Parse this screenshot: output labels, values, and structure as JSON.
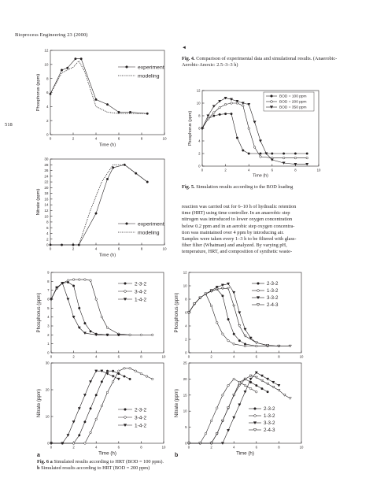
{
  "page": {
    "running_head": "Bioprocess Engineering 23 (2000)",
    "page_number": "518",
    "arrow_glyph": "◄"
  },
  "captions": {
    "fig4_label": "Fig. 4.",
    "fig4_text": " Comparison of experimental data and simulational results. (Anaerobic-Aerobic-Anoxic: 2.5–3–3 h)",
    "fig5_label": "Fig. 5.",
    "fig5_text": " Simulation results according to the BOD loading",
    "fig6_label": "Fig. 6",
    "fig6_a_letter": "a",
    "fig6_a_text": " Simulated results according to HRT (BOD = 100 ppm).",
    "fig6_b_letter": "b",
    "fig6_b_text": " Simulated results according to HRT (BOD = 200 ppm)",
    "panel_a": "a",
    "panel_b": "b"
  },
  "body_text": {
    "l1": "reaction was carried out for 6–10 h of hydraulic retention",
    "l2": "time (HRT) using time controller. In an anaerobic step",
    "l3": "nitrogen was introduced to lower oxygen concentration",
    "l4": "below 0.2 ppm and in an aerobic step oxygen concentra-",
    "l5": "tion was maintained over 4 ppm by introducing air.",
    "l6": "Samples were taken every 1–3 h to be filtered with glass-",
    "l7": "fiber filter (Whatman) and analyzed. By varying pH,",
    "l8": "temperature, HRT, and composition of synthetic waste-"
  },
  "chart_data": [
    {
      "id": "fig4-phosphorus",
      "type": "line",
      "title": "",
      "xlabel": "Time (h)",
      "ylabel": "Phosphorus (ppm)",
      "xlim": [
        0,
        10
      ],
      "ylim": [
        0,
        12
      ],
      "xticks": [
        0,
        2,
        4,
        6,
        8,
        10
      ],
      "yticks": [
        0,
        2,
        4,
        6,
        8,
        10,
        12
      ],
      "legend_position": "top-right",
      "series": [
        {
          "name": "experiment",
          "style": "solid-filled-circle",
          "x": [
            0,
            1,
            1.5,
            2.2,
            2.7,
            4,
            5,
            6,
            7,
            8.5
          ],
          "y": [
            5.8,
            9.2,
            9.5,
            10.8,
            10.8,
            5,
            4.3,
            3.2,
            3.2,
            3.0
          ]
        },
        {
          "name": "modeling",
          "style": "dotted",
          "x": [
            0,
            1,
            2,
            2.5,
            3,
            4,
            5,
            6,
            7,
            8.5
          ],
          "y": [
            5.8,
            8.8,
            9.6,
            10.5,
            9,
            4,
            3.2,
            3.0,
            3.0,
            3.0
          ]
        }
      ]
    },
    {
      "id": "fig4-nitrate",
      "type": "line",
      "title": "",
      "xlabel": "Time (h)",
      "ylabel": "Nitrate (ppm)",
      "xlim": [
        0,
        10
      ],
      "ylim": [
        0,
        30
      ],
      "xticks": [
        0,
        2,
        4,
        6,
        8,
        10
      ],
      "yticks": [
        0,
        2,
        4,
        6,
        8,
        10,
        12,
        14,
        16,
        18,
        20,
        22,
        24,
        26,
        28,
        30
      ],
      "legend_position": "bottom-right",
      "series": [
        {
          "name": "experiment",
          "style": "solid-filled-circle",
          "x": [
            0,
            1,
            2,
            2.5,
            4,
            5,
            5.5,
            6.5,
            7.5,
            8.5
          ],
          "y": [
            0,
            0,
            0,
            0,
            11,
            23,
            27,
            28,
            25,
            22
          ]
        },
        {
          "name": "modeling",
          "style": "dotted",
          "x": [
            2.5,
            3.5,
            4.5,
            5.5,
            6.5,
            7.5,
            8.5
          ],
          "y": [
            0,
            12,
            22,
            28,
            28,
            25,
            22
          ]
        }
      ]
    },
    {
      "id": "fig5-bod",
      "type": "line",
      "title": "",
      "xlabel": "Time (h)",
      "ylabel": "Phosphorus (ppm)",
      "xlim": [
        0,
        10
      ],
      "ylim": [
        0,
        12
      ],
      "xticks": [
        0,
        2,
        4,
        6,
        8,
        10
      ],
      "yticks": [
        0,
        2,
        4,
        6,
        8,
        10,
        12
      ],
      "legend_position": "top-right",
      "series": [
        {
          "name": "BOD = 100 ppm",
          "marker": "filled-circle",
          "x": [
            0,
            0.5,
            1,
            1.5,
            2,
            2.5,
            3,
            3.5,
            4,
            5,
            6,
            7,
            8,
            9
          ],
          "y": [
            6,
            7.5,
            8,
            8.2,
            8.3,
            8.3,
            4.5,
            2.5,
            2,
            2,
            2,
            2,
            2,
            2
          ]
        },
        {
          "name": "BOD = 200 ppm",
          "marker": "open-circle",
          "x": [
            0,
            0.5,
            1,
            1.5,
            2,
            2.5,
            3,
            3.5,
            4,
            4.5,
            5,
            6,
            7,
            8,
            9
          ],
          "y": [
            6,
            7.5,
            8.5,
            9.3,
            9.8,
            10,
            10,
            9.6,
            6,
            3,
            1.5,
            1.3,
            1.3,
            1.3,
            1.3
          ]
        },
        {
          "name": "BOD = 350 ppm",
          "marker": "filled-triangle",
          "x": [
            0,
            0.5,
            1,
            1.5,
            2,
            2.5,
            3,
            3.5,
            4,
            4.5,
            5,
            5.5,
            6,
            7,
            8,
            9
          ],
          "y": [
            6,
            8,
            9.5,
            10.3,
            10.8,
            10.6,
            10.3,
            10,
            9.8,
            7,
            4,
            2,
            1,
            0.5,
            0.3,
            0.3
          ]
        }
      ]
    },
    {
      "id": "fig6a-phosphorus",
      "type": "line",
      "title": "",
      "xlabel": "",
      "ylabel": "Phosphorus (ppm)",
      "xlim": [
        0,
        10
      ],
      "ylim": [
        0,
        9
      ],
      "xticks": [
        0,
        2,
        4,
        6,
        8,
        10
      ],
      "yticks": [
        0,
        1,
        2,
        3,
        4,
        5,
        6,
        7,
        8,
        9
      ],
      "legend_position": "top-right",
      "series": [
        {
          "name": "2-3-2",
          "marker": "filled-circle",
          "x": [
            0,
            0.5,
            1,
            1.5,
            2,
            2.5,
            3,
            3.5,
            4,
            5,
            6,
            7
          ],
          "y": [
            6,
            7.3,
            7.8,
            7.9,
            7.5,
            5,
            3.3,
            2.4,
            2.1,
            2,
            2,
            2
          ]
        },
        {
          "name": "3-4-2",
          "marker": "open-circle",
          "x": [
            0,
            0.5,
            1,
            1.5,
            2,
            2.5,
            3,
            3.5,
            4,
            4.5,
            5,
            6,
            7,
            8,
            9
          ],
          "y": [
            6,
            7.2,
            7.8,
            8.1,
            8.2,
            8.2,
            8.2,
            8.1,
            6,
            4,
            2.8,
            2.1,
            2,
            2,
            2
          ]
        },
        {
          "name": "1-4-2",
          "marker": "filled-triangle",
          "x": [
            0,
            0.5,
            1,
            1.5,
            2,
            2.5,
            3,
            4,
            5,
            6
          ],
          "y": [
            6,
            7.3,
            7.8,
            6,
            4,
            2.8,
            2.2,
            2,
            2,
            2
          ]
        }
      ]
    },
    {
      "id": "fig6a-nitrate",
      "type": "line",
      "title": "",
      "xlabel": "Time (h)",
      "ylabel": "Nitrate (ppm)",
      "xlim": [
        0,
        10
      ],
      "ylim": [
        0,
        30
      ],
      "xticks": [
        0,
        2,
        4,
        6,
        8,
        10
      ],
      "yticks": [
        0,
        10,
        20,
        30
      ],
      "legend_position": "bottom-right",
      "series": [
        {
          "name": "2-3-2",
          "marker": "filled-circle",
          "x": [
            0,
            1,
            2,
            2.5,
            3,
            3.5,
            4,
            4.5,
            5,
            5.5,
            6,
            6.5,
            7
          ],
          "y": [
            0,
            0,
            0,
            3,
            8,
            13,
            18,
            23,
            27,
            27,
            26,
            25,
            24
          ]
        },
        {
          "name": "3-4-2",
          "marker": "open-circle",
          "x": [
            0,
            1,
            2,
            3,
            3.5,
            4,
            4.5,
            5,
            5.5,
            6,
            6.5,
            7,
            7.5,
            8,
            8.5,
            9
          ],
          "y": [
            0,
            0,
            0,
            0,
            4,
            9,
            14,
            19,
            23,
            27,
            28,
            28,
            27,
            26,
            25,
            24
          ]
        },
        {
          "name": "1-4-2",
          "marker": "filled-triangle",
          "x": [
            0,
            1,
            1.5,
            2,
            2.5,
            3,
            3.5,
            4,
            4.5,
            5,
            5.5,
            6
          ],
          "y": [
            0,
            0,
            3,
            8,
            13,
            18,
            23,
            27,
            27,
            26,
            25,
            24
          ]
        }
      ]
    },
    {
      "id": "fig6b-phosphorus",
      "type": "line",
      "title": "",
      "xlabel": "",
      "ylabel": "Phosphorus (ppm)",
      "xlim": [
        0,
        10
      ],
      "ylim": [
        0,
        12
      ],
      "xticks": [
        0,
        2,
        4,
        6,
        8,
        10
      ],
      "yticks": [
        0,
        2,
        4,
        6,
        8,
        10,
        12
      ],
      "legend_position": "top-right",
      "series": [
        {
          "name": "2-3-2",
          "marker": "filled-circle",
          "x": [
            0,
            0.5,
            1,
            1.5,
            2,
            2.5,
            3,
            3.5,
            4,
            4.5,
            5,
            6,
            7,
            8
          ],
          "y": [
            6,
            7.3,
            8.2,
            8.8,
            9.2,
            9.5,
            8.5,
            5,
            2.8,
            1.8,
            1.3,
            1,
            1,
            1
          ]
        },
        {
          "name": "1-3-2",
          "marker": "open-circle",
          "x": [
            0,
            0.5,
            1,
            1.5,
            2,
            2.5,
            3,
            3.5,
            4,
            5,
            6,
            7
          ],
          "y": [
            6,
            7.3,
            8.2,
            8.8,
            7,
            4.5,
            2.8,
            1.8,
            1.3,
            1,
            1,
            1
          ]
        },
        {
          "name": "3-3-2",
          "marker": "filled-triangle",
          "x": [
            0,
            0.5,
            1,
            1.5,
            2,
            2.5,
            3,
            3.5,
            4,
            4.5,
            5,
            5.5,
            6,
            7,
            8,
            9
          ],
          "y": [
            6,
            7.3,
            8.2,
            8.8,
            9.3,
            9.8,
            10.1,
            10.3,
            9,
            6,
            3.5,
            2.2,
            1.5,
            1.1,
            1,
            1
          ]
        },
        {
          "name": "2-4-3",
          "marker": "open-triangle",
          "x": [
            0,
            0.5,
            1,
            1.5,
            2,
            2.5,
            3,
            3.5,
            4,
            4.5,
            5,
            6,
            7,
            8,
            9
          ],
          "y": [
            6,
            7.3,
            8.2,
            8.8,
            9.2,
            9.5,
            9.6,
            9.6,
            7,
            4,
            2.5,
            1.5,
            1.1,
            1,
            1
          ]
        }
      ]
    },
    {
      "id": "fig6b-nitrate",
      "type": "line",
      "title": "",
      "xlabel": "Time (h)",
      "ylabel": "Nitrate (ppm)",
      "xlim": [
        0,
        10
      ],
      "ylim": [
        0,
        25
      ],
      "xticks": [
        0,
        2,
        4,
        6,
        8,
        10
      ],
      "yticks": [
        0,
        5,
        10,
        15,
        20,
        25
      ],
      "legend_position": "bottom-right",
      "series": [
        {
          "name": "2-3-2",
          "marker": "filled-circle",
          "x": [
            0,
            1,
            2,
            2.5,
            3,
            3.5,
            4,
            4.5,
            5,
            5.5,
            6,
            6.5,
            7
          ],
          "y": [
            0,
            0,
            0,
            3,
            7,
            11,
            15,
            19,
            20,
            19,
            18,
            17,
            16
          ]
        },
        {
          "name": "1-3-2",
          "marker": "open-circle",
          "x": [
            0,
            1,
            1.5,
            2,
            2.5,
            3,
            3.5,
            4,
            4.5,
            5,
            5.5,
            6
          ],
          "y": [
            0,
            0,
            3,
            7,
            11,
            15,
            18,
            20,
            19,
            18,
            17,
            16
          ]
        },
        {
          "name": "3-3-2",
          "marker": "filled-triangle",
          "x": [
            0,
            1,
            2,
            3,
            3.5,
            4,
            4.5,
            5,
            5.5,
            6,
            6.5,
            7,
            7.5,
            8
          ],
          "y": [
            0,
            0,
            0,
            0,
            4,
            8,
            12,
            16,
            20,
            22,
            21,
            20,
            19,
            18
          ]
        },
        {
          "name": "2-4-3",
          "marker": "open-triangle",
          "x": [
            0,
            1,
            2,
            2.5,
            3,
            3.5,
            4,
            4.5,
            5,
            5.5,
            6,
            6.5,
            7,
            7.5,
            8,
            8.5,
            9
          ],
          "y": [
            0,
            0,
            0,
            3,
            7,
            11,
            15,
            18,
            20,
            21,
            20.5,
            19.5,
            18.5,
            17.5,
            16.5,
            15,
            14
          ]
        }
      ]
    }
  ]
}
